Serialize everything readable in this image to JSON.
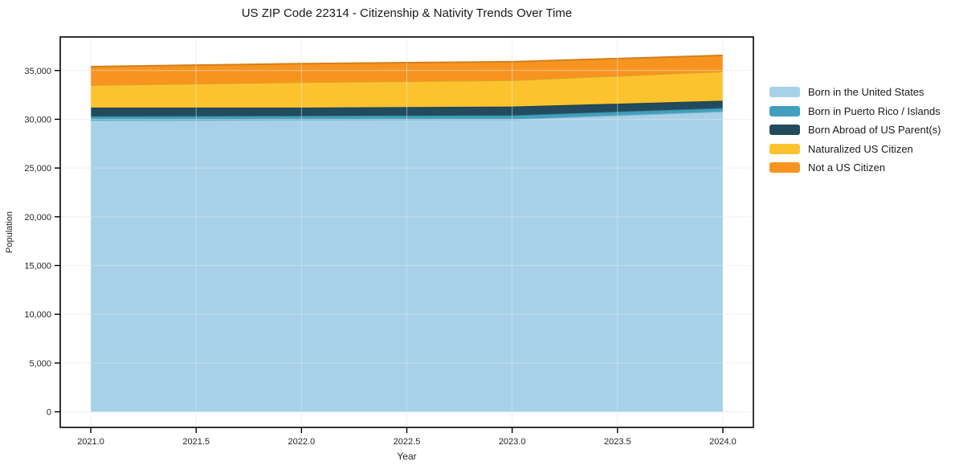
{
  "figure": {
    "background": "#ffffff"
  },
  "chart_data": {
    "type": "area",
    "stacked": true,
    "title": "US ZIP Code 22314 - Citizenship & Nativity Trends Over Time",
    "xlabel": "Year",
    "ylabel": "Population",
    "x": [
      2021,
      2022,
      2023,
      2024
    ],
    "series": [
      {
        "name": "Born in the United States",
        "color": "#A6D1E8",
        "values": [
          29900,
          29950,
          30000,
          30800
        ]
      },
      {
        "name": "Born in Puerto Rico / Islands",
        "color": "#41A0BE",
        "values": [
          400,
          400,
          400,
          350
        ]
      },
      {
        "name": "Born Abroad of US Parent(s)",
        "color": "#224B5E",
        "values": [
          900,
          850,
          900,
          750
        ]
      },
      {
        "name": "Naturalized US Citizen",
        "color": "#FDC32F",
        "values": [
          2300,
          2600,
          2700,
          3000
        ]
      },
      {
        "name": "Not a US Citizen",
        "color": "#F79420",
        "values": [
          1900,
          1900,
          1900,
          1650
        ]
      }
    ],
    "totals": [
      35400,
      35700,
      35900,
      36550
    ],
    "x_ticks": {
      "values": [
        2021.0,
        2021.5,
        2022.0,
        2022.5,
        2023.0,
        2023.5,
        2024.0
      ],
      "labels": [
        "2021.0",
        "2021.5",
        "2022.0",
        "2022.5",
        "2023.0",
        "2023.5",
        "2024.0"
      ]
    },
    "y_ticks": {
      "values": [
        0,
        5000,
        10000,
        15000,
        20000,
        25000,
        30000,
        35000
      ],
      "labels": [
        "0",
        "5,000",
        "10,000",
        "15,000",
        "20,000",
        "25,000",
        "30,000",
        "35,000"
      ]
    },
    "xlim": [
      2020.855,
      2024.145
    ],
    "ylim": [
      -1600,
      38440
    ],
    "grid": true,
    "grid_color": "#e6e6e6",
    "spine_color": "#000000",
    "tick_label_color": "#262626",
    "legend_position": "right"
  }
}
